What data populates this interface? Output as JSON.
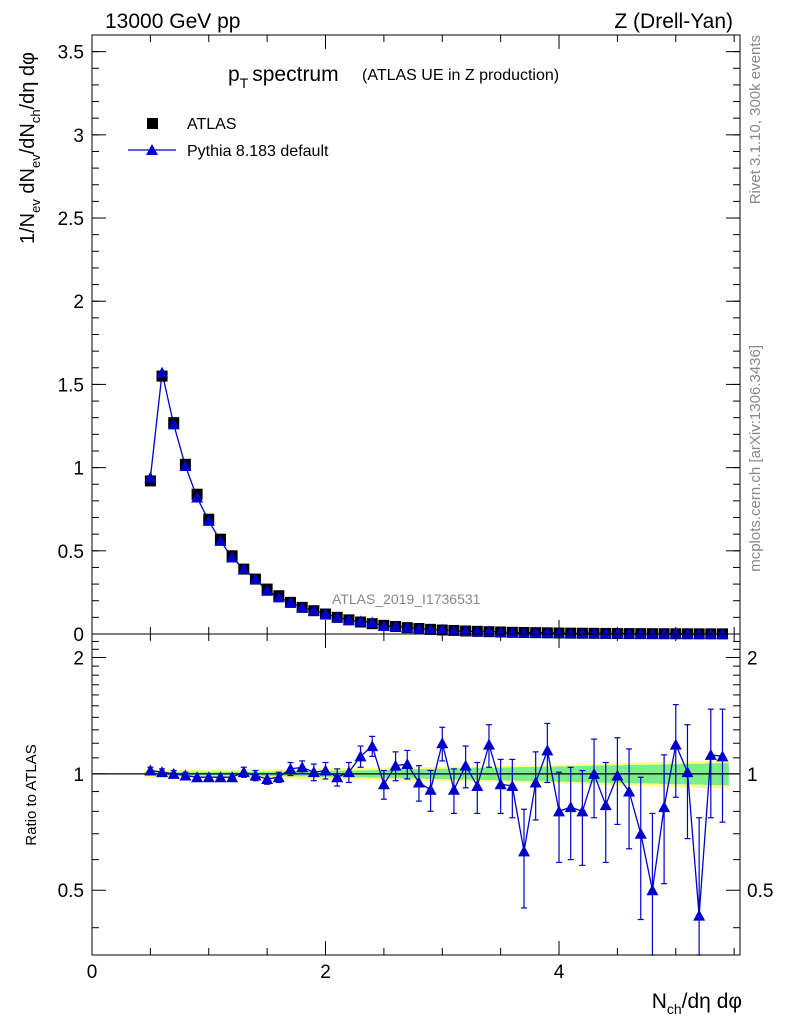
{
  "header": {
    "left": "13000 GeV pp",
    "right": "Z (Drell-Yan)"
  },
  "side": {
    "top": "Rivet 3.1.10,  300k events",
    "bottom": "mcplots.cern.ch [arXiv:1306.3436]"
  },
  "colors": {
    "data": "#000000",
    "mc": "#0000cc",
    "band_inner": "#77ee88",
    "band_outer": "#ffff88"
  },
  "chart_data": [
    {
      "type": "scatter",
      "panel": "main",
      "title": "p_T spectrum",
      "title_main": "p",
      "title_sub": "T",
      "title_rest": "spectrum",
      "subtitle": "(ATLAS UE in Z production)",
      "analysis_label": "ATLAS_2019_I1736531",
      "ylabel": "1/N_ev dN_ev/dN_ch/dη dφ",
      "ylabel_parts": [
        "1/N",
        "ev",
        " dN",
        "ev",
        "/dN",
        "ch",
        "/dη dφ"
      ],
      "xlim": [
        0,
        5.55
      ],
      "ylim": [
        0,
        3.6
      ],
      "yticks": [
        0,
        0.5,
        1,
        1.5,
        2,
        2.5,
        3,
        3.5
      ],
      "ytick_labels": [
        "0",
        "0.5",
        "1",
        "1.5",
        "2",
        "2.5",
        "3",
        "3.5"
      ],
      "legend": [
        "ATLAS",
        "Pythia 8.183 default"
      ],
      "x": [
        0.5,
        0.6,
        0.7,
        0.8,
        0.9,
        1.0,
        1.1,
        1.2,
        1.3,
        1.4,
        1.5,
        1.6,
        1.7,
        1.8,
        1.9,
        2.0,
        2.1,
        2.2,
        2.3,
        2.4,
        2.5,
        2.6,
        2.7,
        2.8,
        2.9,
        3.0,
        3.1,
        3.2,
        3.3,
        3.4,
        3.5,
        3.6,
        3.7,
        3.8,
        3.9,
        4.0,
        4.1,
        4.2,
        4.3,
        4.4,
        4.5,
        4.6,
        4.7,
        4.8,
        4.9,
        5.0,
        5.1,
        5.2,
        5.3,
        5.4
      ],
      "series": [
        {
          "name": "ATLAS",
          "values": [
            0.92,
            1.55,
            1.27,
            1.02,
            0.84,
            0.69,
            0.57,
            0.47,
            0.39,
            0.33,
            0.27,
            0.23,
            0.19,
            0.16,
            0.14,
            0.12,
            0.1,
            0.085,
            0.072,
            0.062,
            0.052,
            0.045,
            0.038,
            0.033,
            0.028,
            0.024,
            0.021,
            0.018,
            0.016,
            0.014,
            0.012,
            0.01,
            0.009,
            0.008,
            0.007,
            0.006,
            0.005,
            0.0045,
            0.004,
            0.0035,
            0.003,
            0.0026,
            0.0022,
            0.0019,
            0.0016,
            0.0014,
            0.0012,
            0.001,
            0.0009,
            0.0008
          ]
        },
        {
          "name": "Pythia 8.183 default",
          "values": [
            0.94,
            1.57,
            1.26,
            1.01,
            0.82,
            0.68,
            0.56,
            0.46,
            0.39,
            0.33,
            0.26,
            0.22,
            0.19,
            0.16,
            0.14,
            0.12,
            0.1,
            0.085,
            0.076,
            0.068,
            0.048,
            0.046,
            0.039,
            0.031,
            0.025,
            0.027,
            0.019,
            0.018,
            0.014,
            0.016,
            0.012,
            0.009,
            0.006,
            0.008,
            0.008,
            0.005,
            0.004,
            0.0037,
            0.004,
            0.0029,
            0.003,
            0.0023,
            0.0015,
            0.0009,
            0.0013,
            0.0017,
            0.0012,
            0.0004,
            0.001,
            0.0009
          ]
        }
      ]
    },
    {
      "type": "line",
      "panel": "ratio",
      "ylabel": "Ratio to ATLAS",
      "xlabel": "N_ch/dη dφ",
      "xlabel_parts": [
        "N",
        "ch",
        "/dη dφ"
      ],
      "xlim": [
        0,
        5.55
      ],
      "ylim": [
        0.34,
        2.3
      ],
      "xticks": [
        0,
        2,
        4
      ],
      "xtick_labels": [
        "0",
        "2",
        "4"
      ],
      "yticks": [
        0.5,
        1,
        2
      ],
      "ytick_labels": [
        "0.5",
        "1",
        "2"
      ],
      "x": [
        0.5,
        0.6,
        0.7,
        0.8,
        0.9,
        1.0,
        1.1,
        1.2,
        1.3,
        1.4,
        1.5,
        1.6,
        1.7,
        1.8,
        1.9,
        2.0,
        2.1,
        2.2,
        2.3,
        2.4,
        2.5,
        2.6,
        2.7,
        2.8,
        2.9,
        3.0,
        3.1,
        3.2,
        3.3,
        3.4,
        3.5,
        3.6,
        3.7,
        3.8,
        3.9,
        4.0,
        4.1,
        4.2,
        4.3,
        4.4,
        4.5,
        4.6,
        4.7,
        4.8,
        4.9,
        5.0,
        5.1,
        5.2,
        5.3,
        5.4
      ],
      "series": [
        {
          "name": "Pythia 8.183 default",
          "values": [
            1.02,
            1.01,
            1.0,
            0.99,
            0.98,
            0.98,
            0.98,
            0.98,
            1.01,
            0.99,
            0.97,
            0.98,
            1.03,
            1.04,
            1.01,
            1.02,
            0.98,
            1.01,
            1.11,
            1.18,
            0.94,
            1.05,
            1.06,
            0.95,
            0.91,
            1.2,
            0.91,
            1.05,
            0.93,
            1.19,
            0.94,
            0.93,
            0.63,
            0.95,
            1.15,
            0.8,
            0.82,
            0.8,
            1.0,
            0.83,
            0.99,
            0.9,
            0.7,
            0.5,
            0.82,
            1.19,
            1.01,
            0.43,
            1.12,
            1.11
          ],
          "errors": [
            0.02,
            0.02,
            0.02,
            0.02,
            0.02,
            0.02,
            0.02,
            0.02,
            0.03,
            0.03,
            0.03,
            0.03,
            0.04,
            0.04,
            0.05,
            0.05,
            0.05,
            0.06,
            0.07,
            0.07,
            0.08,
            0.09,
            0.09,
            0.1,
            0.11,
            0.12,
            0.12,
            0.13,
            0.14,
            0.15,
            0.15,
            0.16,
            0.18,
            0.19,
            0.2,
            0.21,
            0.22,
            0.22,
            0.23,
            0.24,
            0.25,
            0.26,
            0.28,
            0.29,
            0.3,
            0.32,
            0.33,
            0.34,
            0.35,
            0.36
          ]
        }
      ],
      "band": {
        "inner": [
          0.01,
          0.01,
          0.01,
          0.01,
          0.01,
          0.01,
          0.01,
          0.01,
          0.012,
          0.012,
          0.013,
          0.014,
          0.015,
          0.016,
          0.017,
          0.018,
          0.019,
          0.02,
          0.021,
          0.022,
          0.024,
          0.026,
          0.027,
          0.028,
          0.03,
          0.031,
          0.033,
          0.034,
          0.035,
          0.036,
          0.038,
          0.04,
          0.041,
          0.042,
          0.043,
          0.045,
          0.046,
          0.048,
          0.05,
          0.051,
          0.052,
          0.054,
          0.055,
          0.056,
          0.058,
          0.06,
          0.061,
          0.062,
          0.064,
          0.066
        ],
        "outer": [
          0.025,
          0.025,
          0.025,
          0.025,
          0.025,
          0.025,
          0.025,
          0.025,
          0.026,
          0.027,
          0.028,
          0.029,
          0.03,
          0.031,
          0.032,
          0.033,
          0.034,
          0.035,
          0.036,
          0.037,
          0.038,
          0.039,
          0.04,
          0.041,
          0.042,
          0.043,
          0.044,
          0.045,
          0.046,
          0.047,
          0.048,
          0.049,
          0.05,
          0.052,
          0.054,
          0.056,
          0.058,
          0.06,
          0.062,
          0.064,
          0.066,
          0.068,
          0.07,
          0.072,
          0.074,
          0.076,
          0.078,
          0.08,
          0.082,
          0.084
        ]
      }
    }
  ]
}
